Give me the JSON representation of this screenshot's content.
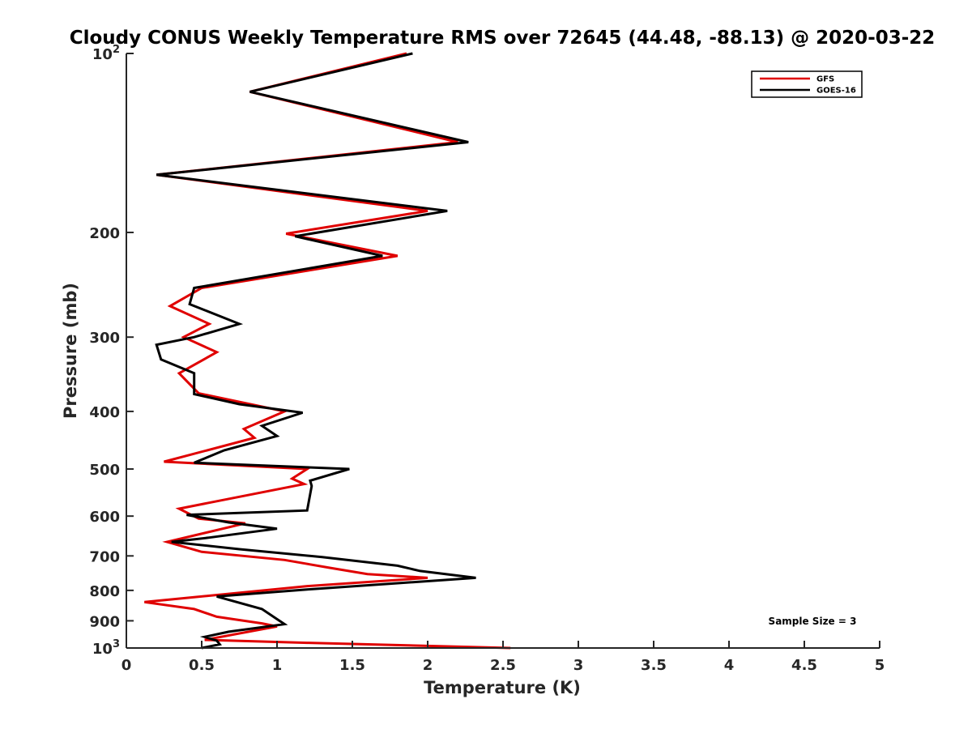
{
  "chart_data": {
    "type": "line",
    "title": "Cloudy CONUS Weekly Temperature RMS over 72645 (44.48, -88.13) @ 2020-03-22",
    "xlabel": "Temperature (K)",
    "ylabel": "Pressure (mb)",
    "xlim": [
      0,
      5
    ],
    "ylim": [
      1000,
      100
    ],
    "yscale": "log",
    "y_reversed": true,
    "grid": false,
    "legend_position": "top-right",
    "x_ticks": [
      0,
      0.5,
      1,
      1.5,
      2,
      2.5,
      3,
      3.5,
      4,
      4.5,
      5
    ],
    "x_tick_labels": [
      "0",
      "0.5",
      "1",
      "1.5",
      "2",
      "2.5",
      "3",
      "3.5",
      "4",
      "4.5",
      "5"
    ],
    "y_ticks": [
      {
        "value": 100,
        "base": "10",
        "exp": "2"
      },
      {
        "value": 200,
        "label": "200"
      },
      {
        "value": 300,
        "label": "300"
      },
      {
        "value": 400,
        "label": "400"
      },
      {
        "value": 500,
        "label": "500"
      },
      {
        "value": 600,
        "label": "600"
      },
      {
        "value": 700,
        "label": "700"
      },
      {
        "value": 800,
        "label": "800"
      },
      {
        "value": 900,
        "label": "900"
      },
      {
        "value": 1000,
        "base": "10",
        "exp": "3"
      }
    ],
    "annotation": "Sample Size = 3",
    "series": [
      {
        "name": "GFS",
        "color": "#e00000",
        "points": [
          [
            1.86,
            100
          ],
          [
            0.82,
            116
          ],
          [
            2.2,
            141
          ],
          [
            0.2,
            160
          ],
          [
            2.0,
            184
          ],
          [
            1.06,
            201
          ],
          [
            1.8,
            219
          ],
          [
            0.5,
            248
          ],
          [
            0.29,
            266
          ],
          [
            0.55,
            285
          ],
          [
            0.38,
            300
          ],
          [
            0.6,
            318
          ],
          [
            0.35,
            345
          ],
          [
            0.48,
            373
          ],
          [
            1.05,
            400
          ],
          [
            0.78,
            428
          ],
          [
            0.85,
            443
          ],
          [
            0.25,
            486
          ],
          [
            1.2,
            500
          ],
          [
            1.1,
            519
          ],
          [
            1.18,
            530
          ],
          [
            0.35,
            583
          ],
          [
            0.48,
            606
          ],
          [
            0.79,
            617
          ],
          [
            0.27,
            663
          ],
          [
            0.5,
            689
          ],
          [
            1.05,
            711
          ],
          [
            1.35,
            733
          ],
          [
            1.6,
            751
          ],
          [
            2.0,
            762
          ],
          [
            1.2,
            787
          ],
          [
            0.12,
            837
          ],
          [
            0.45,
            860
          ],
          [
            0.6,
            886
          ],
          [
            0.9,
            909
          ],
          [
            1.0,
            920
          ],
          [
            0.52,
            969
          ],
          [
            1.2,
            980
          ],
          [
            2.55,
            1000
          ]
        ]
      },
      {
        "name": "GOES-16",
        "color": "#000000",
        "points": [
          [
            1.9,
            100
          ],
          [
            0.82,
            116
          ],
          [
            2.27,
            141
          ],
          [
            0.2,
            160
          ],
          [
            2.13,
            184
          ],
          [
            1.12,
            203
          ],
          [
            1.7,
            219
          ],
          [
            0.45,
            248
          ],
          [
            0.42,
            264
          ],
          [
            0.75,
            285
          ],
          [
            0.45,
            300
          ],
          [
            0.2,
            309
          ],
          [
            0.23,
            327
          ],
          [
            0.45,
            345
          ],
          [
            0.45,
            374
          ],
          [
            0.75,
            389
          ],
          [
            1.17,
            402
          ],
          [
            0.9,
            423
          ],
          [
            1.0,
            440
          ],
          [
            0.65,
            465
          ],
          [
            0.45,
            488
          ],
          [
            1.48,
            500
          ],
          [
            1.22,
            523
          ],
          [
            1.23,
            534
          ],
          [
            1.2,
            587
          ],
          [
            0.4,
            597
          ],
          [
            0.68,
            615
          ],
          [
            1.0,
            630
          ],
          [
            0.55,
            652
          ],
          [
            0.3,
            663
          ],
          [
            0.75,
            682
          ],
          [
            1.3,
            703
          ],
          [
            1.8,
            727
          ],
          [
            1.95,
            742
          ],
          [
            2.32,
            762
          ],
          [
            1.2,
            797
          ],
          [
            0.6,
            819
          ],
          [
            0.9,
            860
          ],
          [
            1.05,
            912
          ],
          [
            0.68,
            939
          ],
          [
            0.52,
            958
          ],
          [
            0.6,
            972
          ],
          [
            0.62,
            986
          ],
          [
            0.5,
            1000
          ]
        ]
      }
    ]
  }
}
